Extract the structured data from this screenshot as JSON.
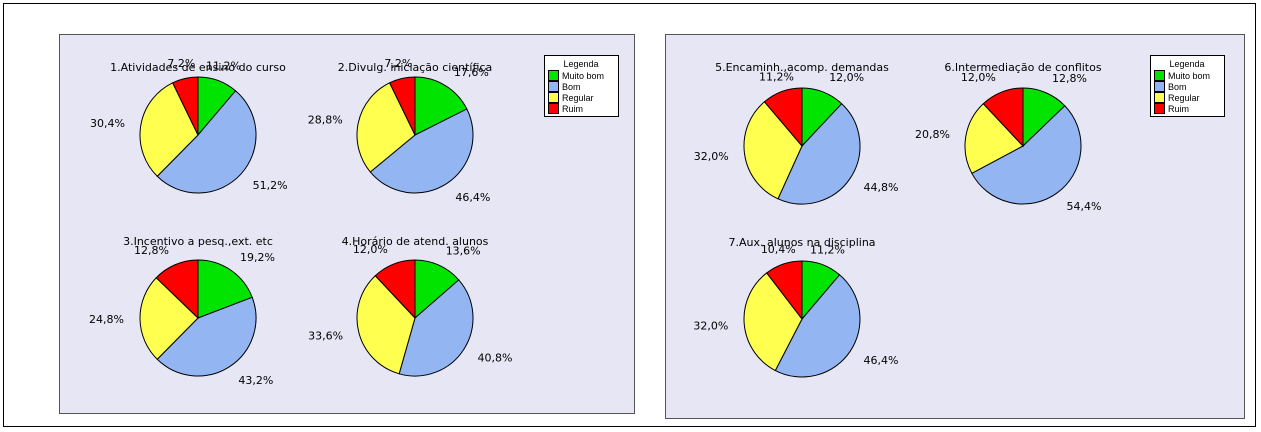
{
  "colors": {
    "Muito bom": "#00e400",
    "Bom": "#93b6f2",
    "Regular": "#ffff50",
    "Ruim": "#ff0000"
  },
  "legend": {
    "title": "Legenda",
    "items": [
      "Muito bom",
      "Bom",
      "Regular",
      "Ruim"
    ]
  },
  "chart_data": [
    {
      "type": "pie",
      "title": "1.Atividades de ensino do curso",
      "labels": [
        "Muito bom",
        "Bom",
        "Regular",
        "Ruim"
      ],
      "values": [
        11.2,
        51.2,
        30.4,
        7.2
      ],
      "value_labels": [
        "11,2%",
        "51,2%",
        "30,4%",
        "7,2%"
      ]
    },
    {
      "type": "pie",
      "title": "2.Divulg. iniciação científica",
      "labels": [
        "Muito bom",
        "Bom",
        "Regular",
        "Ruim"
      ],
      "values": [
        17.6,
        46.4,
        28.8,
        7.2
      ],
      "value_labels": [
        "17,6%",
        "46,4%",
        "28,8%",
        "7,2%"
      ]
    },
    {
      "type": "pie",
      "title": "3.Incentivo a pesq.,ext. etc",
      "labels": [
        "Muito bom",
        "Bom",
        "Regular",
        "Ruim"
      ],
      "values": [
        19.2,
        43.2,
        24.8,
        12.8
      ],
      "value_labels": [
        "19,2%",
        "43,2%",
        "24,8%",
        "12,8%"
      ]
    },
    {
      "type": "pie",
      "title": "4.Horário de atend. alunos",
      "labels": [
        "Muito bom",
        "Bom",
        "Regular",
        "Ruim"
      ],
      "values": [
        13.6,
        40.8,
        33.6,
        12.0
      ],
      "value_labels": [
        "13,6%",
        "40,8%",
        "33,6%",
        "12,0%"
      ]
    },
    {
      "type": "pie",
      "title": "5.Encaminh.,acomp. demandas",
      "labels": [
        "Muito bom",
        "Bom",
        "Regular",
        "Ruim"
      ],
      "values": [
        12.0,
        44.8,
        32.0,
        11.2
      ],
      "value_labels": [
        "12,0%",
        "44,8%",
        "32,0%",
        "11,2%"
      ]
    },
    {
      "type": "pie",
      "title": "6.Intermediação de conflitos",
      "labels": [
        "Muito bom",
        "Bom",
        "Regular",
        "Ruim"
      ],
      "values": [
        12.8,
        54.4,
        20.8,
        12.0
      ],
      "value_labels": [
        "12,8%",
        "54,4%",
        "20,8%",
        "12,0%"
      ]
    },
    {
      "type": "pie",
      "title": "7.Aux. alunos na disciplina",
      "labels": [
        "Muito bom",
        "Bom",
        "Regular",
        "Ruim"
      ],
      "values": [
        11.2,
        46.4,
        32.0,
        10.4
      ],
      "value_labels": [
        "11,2%",
        "46,4%",
        "32,0%",
        "10,4%"
      ]
    }
  ]
}
